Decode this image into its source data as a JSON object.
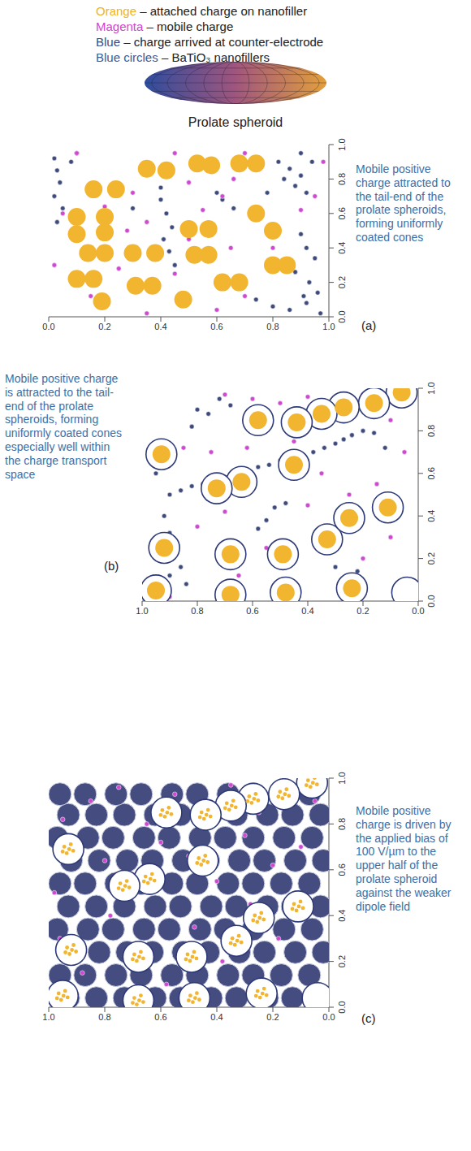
{
  "legend_lines": [
    {
      "key": "Orange",
      "text": "– attached charge on nanofiller",
      "color": "#f0b323"
    },
    {
      "key": "Magenta",
      "text": "– mobile charge",
      "color": "#d43fd4"
    },
    {
      "key": "Blue",
      "text": "– charge arrived at counter-electrode",
      "color": "#3a4a8a"
    },
    {
      "key": "Blue circles",
      "text": "– BaTiO₃ nanofillers",
      "color": "#3a5a9a"
    }
  ],
  "shape_label": "Prolate spheroid",
  "chart_data": [
    {
      "type": "scatter",
      "label": "(a)",
      "annotation": "Mobile positive charge attracted to the tail-end of the prolate spheroids, forming uniformly coated cones",
      "xlim": [
        0,
        1
      ],
      "xticks": [
        {
          "value": 0,
          "label": "0.0"
        },
        0.2,
        0.4,
        0.6,
        0.8,
        {
          "value": 1,
          "label": "1.0"
        }
      ],
      "ylim": [
        0,
        1
      ],
      "yticks": [
        {
          "value": 0,
          "label": "0.0"
        },
        0.2,
        0.4,
        0.6,
        0.8,
        {
          "value": 1,
          "label": "1.0"
        }
      ],
      "series": [
        {
          "color": "#3d4a7a",
          "marker": "dot",
          "x": [
            0.02,
            0.03,
            0.04,
            0.02,
            0.05,
            0.03,
            0.08,
            0.1,
            0.82,
            0.86,
            0.9,
            0.94,
            0.88,
            0.92,
            0.84,
            0.9,
            0.78,
            0.4,
            0.42,
            0.44,
            0.41,
            0.43,
            0.45,
            0.4,
            0.9,
            0.92,
            0.95,
            0.88,
            0.93,
            0.96,
            0.91,
            0.74,
            0.8,
            0.86,
            0.92,
            0.97,
            0.62,
            0.66,
            0.3,
            0.6
          ],
          "y": [
            0.92,
            0.85,
            0.78,
            0.7,
            0.63,
            0.55,
            0.9,
            0.95,
            0.9,
            0.86,
            0.82,
            0.9,
            0.76,
            0.72,
            0.8,
            0.95,
            0.72,
            0.68,
            0.6,
            0.52,
            0.45,
            0.38,
            0.3,
            0.75,
            0.48,
            0.4,
            0.34,
            0.26,
            0.2,
            0.14,
            0.12,
            0.1,
            0.06,
            0.04,
            0.08,
            0.02,
            0.68,
            0.63,
            0.63,
            0.72
          ]
        },
        {
          "color": "#d048d0",
          "marker": "dot",
          "x": [
            0.05,
            0.1,
            0.2,
            0.3,
            0.45,
            0.5,
            0.62,
            0.66,
            0.7,
            0.9,
            0.95,
            0.28,
            0.35,
            0.55,
            0.65,
            0.45,
            0.25,
            0.15,
            0.7,
            0.8,
            0.98,
            0.6,
            0.35,
            0.02,
            0.5
          ],
          "y": [
            0.6,
            0.95,
            0.64,
            0.72,
            0.95,
            0.78,
            0.7,
            0.8,
            0.95,
            0.62,
            0.7,
            0.5,
            0.55,
            0.62,
            0.4,
            0.25,
            0.28,
            0.12,
            0.12,
            0.4,
            0.9,
            0.04,
            0.02,
            0.3,
            0.45
          ]
        },
        {
          "color": "#f2b530",
          "marker": "disc",
          "x": [
            0.16,
            0.24,
            0.35,
            0.42,
            0.53,
            0.58,
            0.68,
            0.74,
            0.1,
            0.2,
            0.1,
            0.2,
            0.5,
            0.57,
            0.74,
            0.8,
            0.14,
            0.2,
            0.3,
            0.38,
            0.52,
            0.57,
            0.1,
            0.16,
            0.31,
            0.37,
            0.62,
            0.68,
            0.8,
            0.85,
            0.19,
            0.48
          ],
          "y": [
            0.74,
            0.74,
            0.86,
            0.85,
            0.89,
            0.88,
            0.89,
            0.89,
            0.58,
            0.58,
            0.48,
            0.49,
            0.51,
            0.51,
            0.6,
            0.5,
            0.37,
            0.37,
            0.37,
            0.37,
            0.36,
            0.36,
            0.22,
            0.22,
            0.18,
            0.18,
            0.2,
            0.2,
            0.3,
            0.3,
            0.09,
            0.1
          ]
        }
      ]
    },
    {
      "type": "scatter",
      "label": "(b)",
      "annotation": "Mobile positive charge is attracted to the tail-end of the prolate spheroids, forming uniformly coated cones especially well within the charge transport space",
      "xlim": [
        1,
        0
      ],
      "xticks": [
        {
          "value": 1,
          "label": "1.0"
        },
        0.8,
        0.6,
        0.4,
        0.2,
        {
          "value": 0,
          "label": "0.0"
        }
      ],
      "ylim": [
        0,
        1
      ],
      "yticks": [
        {
          "value": 0,
          "label": "0.0"
        },
        0.2,
        0.4,
        0.6,
        0.8,
        {
          "value": 1,
          "label": "1.0"
        }
      ],
      "series": [
        {
          "color": "#3d4a7a",
          "marker": "dot",
          "x": [
            0.9,
            0.86,
            0.82,
            0.78,
            0.74,
            0.7,
            0.66,
            0.62,
            0.58,
            0.54,
            0.5,
            0.46,
            0.42,
            0.38,
            0.34,
            0.3,
            0.27,
            0.24,
            0.2,
            0.16,
            0.92,
            0.9,
            0.88,
            0.86,
            0.84,
            0.9,
            0.8,
            0.82,
            0.3,
            0.26,
            0.22,
            0.52,
            0.55,
            0.58,
            0.48,
            0.76,
            0.72,
            0.68,
            0.95,
            0.12
          ],
          "y": [
            0.5,
            0.52,
            0.54,
            0.55,
            0.57,
            0.58,
            0.6,
            0.62,
            0.63,
            0.64,
            0.66,
            0.67,
            0.68,
            0.7,
            0.72,
            0.74,
            0.76,
            0.78,
            0.8,
            0.79,
            0.4,
            0.32,
            0.24,
            0.16,
            0.08,
            0.12,
            0.9,
            0.82,
            0.16,
            0.12,
            0.14,
            0.44,
            0.38,
            0.34,
            0.46,
            0.88,
            0.95,
            0.92,
            0.6,
            0.72
          ]
        },
        {
          "color": "#d048d0",
          "marker": "dot",
          "x": [
            0.7,
            0.6,
            0.5,
            0.4,
            0.2,
            0.1,
            0.85,
            0.75,
            0.62,
            0.45,
            0.35,
            0.15,
            0.05,
            0.8,
            0.55,
            0.4,
            0.25,
            0.1,
            0.65,
            0.5,
            0.3,
            0.9,
            0.7,
            0.45,
            0.2
          ],
          "y": [
            0.97,
            0.95,
            0.93,
            0.96,
            0.97,
            0.85,
            0.72,
            0.7,
            0.72,
            0.75,
            0.6,
            0.55,
            0.7,
            0.35,
            0.25,
            0.45,
            0.5,
            0.3,
            0.12,
            0.1,
            0.3,
            0.02,
            0.42,
            0.58,
            0.2
          ]
        },
        {
          "color": "#2e3a78",
          "marker": "ring",
          "x": [
            0.06,
            0.16,
            0.27,
            0.35,
            0.44,
            0.58,
            0.45,
            0.64,
            0.73,
            0.93,
            0.11,
            0.92,
            0.68,
            0.49,
            0.33,
            0.25,
            0.95,
            0.68,
            0.48,
            0.24,
            0.04
          ],
          "y": [
            0.98,
            0.93,
            0.91,
            0.88,
            0.84,
            0.85,
            0.64,
            0.56,
            0.53,
            0.69,
            0.44,
            0.25,
            0.22,
            0.22,
            0.29,
            0.39,
            0.05,
            0.03,
            0.04,
            0.06,
            0.04
          ]
        },
        {
          "color": "#f2b530",
          "marker": "disc",
          "x": [
            0.06,
            0.16,
            0.27,
            0.35,
            0.44,
            0.58,
            0.45,
            0.64,
            0.73,
            0.93,
            0.11,
            0.92,
            0.68,
            0.49,
            0.33,
            0.25,
            0.95,
            0.68,
            0.48,
            0.24
          ],
          "y": [
            0.98,
            0.93,
            0.91,
            0.88,
            0.84,
            0.85,
            0.64,
            0.56,
            0.53,
            0.69,
            0.44,
            0.25,
            0.22,
            0.22,
            0.29,
            0.39,
            0.05,
            0.03,
            0.04,
            0.06
          ]
        }
      ]
    },
    {
      "type": "scatter",
      "label": "(c)",
      "annotation": "Mobile positive charge is driven by the applied bias of 100 V/µm to the upper half of the prolate spheroid against the weaker dipole field",
      "xlim": [
        1,
        0
      ],
      "xticks": [
        {
          "value": 1,
          "label": "1.0"
        },
        0.8,
        0.6,
        0.4,
        0.2,
        {
          "value": 0,
          "label": "0.0"
        }
      ],
      "ylim": [
        0,
        1
      ],
      "yticks": [
        {
          "value": 0,
          "label": "0.0"
        },
        0.2,
        0.4,
        0.6,
        0.8,
        {
          "value": 1,
          "label": "1.0"
        }
      ],
      "series": [
        {
          "color": "#454d80",
          "marker": "patch",
          "x": [
            0.03,
            0.13,
            0.22,
            0.33,
            0.42,
            0.53,
            0.62,
            0.73,
            0.83,
            0.93,
            0.07,
            0.17,
            0.27,
            0.36,
            0.47,
            0.56,
            0.67,
            0.76,
            0.87,
            0.96,
            0.02,
            0.12,
            0.23,
            0.32,
            0.43,
            0.52,
            0.63,
            0.72,
            0.82,
            0.92,
            0.06,
            0.16,
            0.27,
            0.37,
            0.46,
            0.57,
            0.66,
            0.77,
            0.86,
            0.97,
            0.03,
            0.13,
            0.22,
            0.33,
            0.42,
            0.53,
            0.62,
            0.73,
            0.83,
            0.93,
            0.07,
            0.17,
            0.27,
            0.36,
            0.47,
            0.56,
            0.67,
            0.76,
            0.87,
            0.96,
            0.02,
            0.12,
            0.23,
            0.32,
            0.43,
            0.52,
            0.63,
            0.72,
            0.82,
            0.92,
            0.06,
            0.16,
            0.27,
            0.37,
            0.46,
            0.57,
            0.66,
            0.77,
            0.86,
            0.97,
            0.03,
            0.13,
            0.22,
            0.33,
            0.42,
            0.53,
            0.62,
            0.73,
            0.83,
            0.93,
            0.07,
            0.17,
            0.27,
            0.36,
            0.47,
            0.56,
            0.67,
            0.76,
            0.87,
            0.96
          ],
          "y": [
            0.04,
            0.04,
            0.04,
            0.04,
            0.04,
            0.04,
            0.04,
            0.04,
            0.04,
            0.04,
            0.14,
            0.14,
            0.14,
            0.14,
            0.14,
            0.14,
            0.14,
            0.14,
            0.14,
            0.14,
            0.24,
            0.24,
            0.24,
            0.24,
            0.24,
            0.24,
            0.24,
            0.24,
            0.24,
            0.24,
            0.34,
            0.34,
            0.34,
            0.34,
            0.34,
            0.34,
            0.34,
            0.34,
            0.34,
            0.34,
            0.44,
            0.44,
            0.44,
            0.44,
            0.44,
            0.44,
            0.44,
            0.44,
            0.44,
            0.44,
            0.54,
            0.54,
            0.54,
            0.54,
            0.54,
            0.54,
            0.54,
            0.54,
            0.54,
            0.54,
            0.64,
            0.64,
            0.64,
            0.64,
            0.64,
            0.64,
            0.64,
            0.64,
            0.64,
            0.64,
            0.74,
            0.74,
            0.74,
            0.74,
            0.74,
            0.74,
            0.74,
            0.74,
            0.74,
            0.74,
            0.84,
            0.84,
            0.84,
            0.84,
            0.84,
            0.84,
            0.84,
            0.84,
            0.84,
            0.84,
            0.93,
            0.93,
            0.93,
            0.93,
            0.93,
            0.93,
            0.93,
            0.93,
            0.93,
            0.93
          ]
        },
        {
          "color": "#d048d0",
          "marker": "dot",
          "x": [
            0.05,
            0.15,
            0.25,
            0.35,
            0.45,
            0.55,
            0.65,
            0.75,
            0.85,
            0.95,
            0.1,
            0.2,
            0.3,
            0.4,
            0.5,
            0.6,
            0.7,
            0.8,
            0.9,
            0.98,
            0.08,
            0.18,
            0.28,
            0.38,
            0.48,
            0.58,
            0.68,
            0.78,
            0.88,
            0.96
          ],
          "y": [
            0.9,
            0.95,
            0.85,
            0.97,
            0.88,
            0.93,
            0.8,
            0.96,
            0.9,
            0.82,
            0.7,
            0.62,
            0.75,
            0.55,
            0.66,
            0.72,
            0.58,
            0.64,
            0.7,
            0.5,
            0.4,
            0.3,
            0.45,
            0.2,
            0.35,
            0.1,
            0.25,
            0.4,
            0.15,
            0.3
          ]
        },
        {
          "color": "#2e3a78",
          "marker": "ring",
          "x": [
            0.06,
            0.16,
            0.27,
            0.35,
            0.44,
            0.58,
            0.45,
            0.64,
            0.73,
            0.93,
            0.11,
            0.92,
            0.68,
            0.49,
            0.33,
            0.25,
            0.95,
            0.68,
            0.48,
            0.24,
            0.04
          ],
          "y": [
            0.98,
            0.93,
            0.91,
            0.88,
            0.84,
            0.85,
            0.64,
            0.56,
            0.53,
            0.69,
            0.44,
            0.25,
            0.22,
            0.22,
            0.29,
            0.39,
            0.05,
            0.03,
            0.04,
            0.06,
            0.04
          ]
        },
        {
          "color": "#f2b530",
          "marker": "cluster",
          "x": [
            0.06,
            0.16,
            0.27,
            0.35,
            0.44,
            0.58,
            0.45,
            0.64,
            0.73,
            0.93,
            0.11,
            0.92,
            0.68,
            0.49,
            0.33,
            0.25,
            0.95,
            0.68,
            0.48,
            0.24
          ],
          "y": [
            0.98,
            0.93,
            0.91,
            0.88,
            0.84,
            0.85,
            0.64,
            0.56,
            0.53,
            0.69,
            0.44,
            0.25,
            0.22,
            0.22,
            0.29,
            0.39,
            0.05,
            0.03,
            0.04,
            0.06
          ]
        }
      ]
    }
  ]
}
